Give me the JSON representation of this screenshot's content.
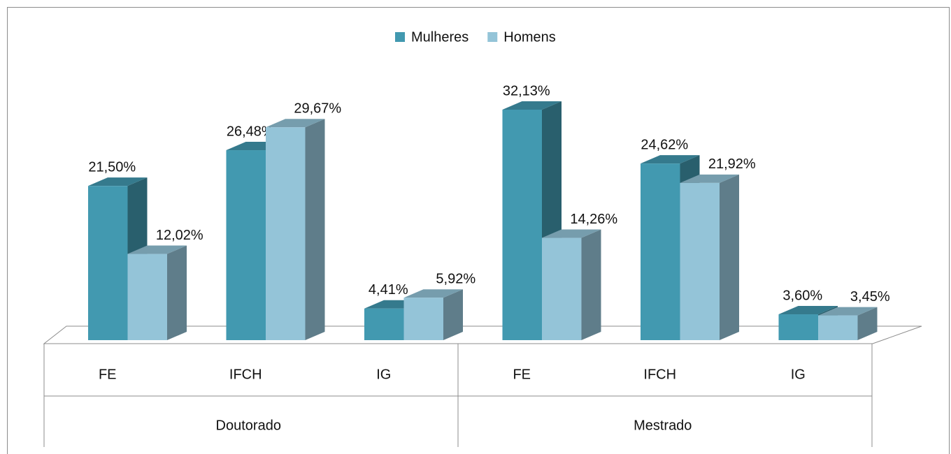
{
  "chart_data": {
    "type": "bar3d",
    "categories": [
      "FE",
      "IFCH",
      "IG",
      "FE",
      "IFCH",
      "IG"
    ],
    "groups": [
      {
        "name": "Doutorado",
        "span": 3
      },
      {
        "name": "Mestrado",
        "span": 3
      }
    ],
    "legend": "top",
    "series": [
      {
        "name": "Mulheres",
        "color": "#4299b0",
        "values": [
          21.5,
          26.48,
          4.41,
          32.13,
          24.62,
          3.6
        ],
        "value_labels": [
          "21,50%",
          "26,48%",
          "4,41%",
          "32,13%",
          "24,62%",
          "3,60%"
        ]
      },
      {
        "name": "Homens",
        "color": "#94c4d8",
        "values": [
          12.02,
          29.67,
          5.92,
          14.26,
          21.92,
          3.45
        ],
        "value_labels": [
          "12,02%",
          "29,67%",
          "5,92%",
          "14,26%",
          "21,92%",
          "3,45%"
        ]
      }
    ]
  }
}
